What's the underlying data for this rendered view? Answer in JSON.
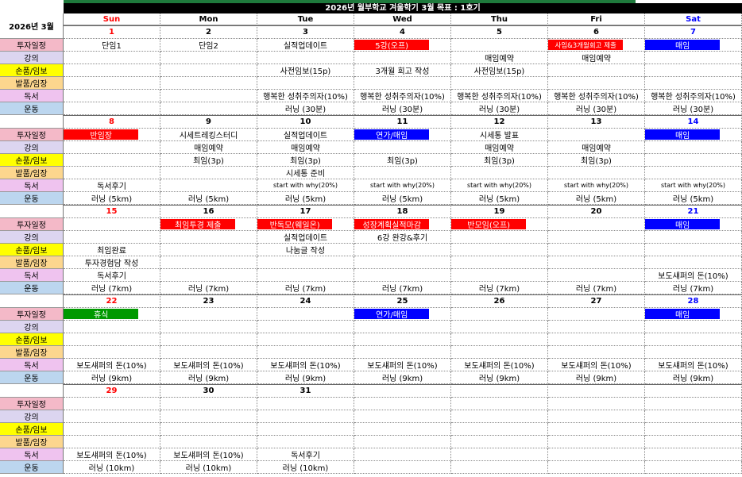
{
  "title": "2026년 월부학교 겨울학기 3월 목표 : 1호기",
  "month_label": "2026년 3월",
  "days": [
    "Sun",
    "Mon",
    "Tue",
    "Wed",
    "Thu",
    "Fri",
    "Sat"
  ],
  "day_colors": [
    "#ff0000",
    "#000000",
    "#000000",
    "#000000",
    "#000000",
    "#000000",
    "#0000ff"
  ],
  "row_labels": [
    "투자일정",
    "강의",
    "손품/임보",
    "발품/임장",
    "독서",
    "운동"
  ],
  "row_colors": [
    "#f4b9c8",
    "#dcd5f0",
    "#ffff00",
    "#fcd68e",
    "#efc3ef",
    "#bcd6ef"
  ],
  "weeks": [
    {
      "dates": [
        1,
        2,
        3,
        4,
        5,
        6,
        7
      ],
      "rows": [
        [
          "단임1",
          "단임2",
          "실적업데이트",
          {
            "text": "5강(오프)",
            "bg": "#ff0000"
          },
          null,
          {
            "text": "사임&3개월회고 제출",
            "bg": "#ff0000"
          },
          {
            "text": "매임",
            "bg": "#0000ff"
          }
        ],
        [
          null,
          null,
          null,
          null,
          "매임예약",
          "매임예약",
          null
        ],
        [
          null,
          null,
          "사전임보(15p)",
          "3개월 회고 작성",
          "사전임보(15p)",
          null,
          null
        ],
        [
          null,
          null,
          null,
          null,
          null,
          null,
          null
        ],
        [
          null,
          null,
          "행복한 성취주의자(10%)",
          "행복한 성취주의자(10%)",
          "행복한 성취주의자(10%)",
          "행복한 성취주의자(10%)",
          "행복한 성취주의자(10%)"
        ],
        [
          null,
          null,
          "러닝 (30분)",
          "러닝 (30분)",
          "러닝 (30분)",
          "러닝 (30분)",
          "러닝 (30분)"
        ]
      ]
    },
    {
      "dates": [
        8,
        9,
        10,
        11,
        12,
        13,
        14
      ],
      "rows": [
        [
          {
            "text": "반임장",
            "bg": "#ff0000"
          },
          "시세트레킹스터디",
          "실적업데이트",
          {
            "text": "연가/매임",
            "bg": "#0000ff"
          },
          "시세통 발표",
          null,
          {
            "text": "매임",
            "bg": "#0000ff"
          }
        ],
        [
          null,
          "매임예약",
          "매임예약",
          null,
          "매임예약",
          "매임예약",
          null
        ],
        [
          null,
          "최임(3p)",
          "최임(3p)",
          "최임(3p)",
          "최임(3p)",
          "최임(3p)",
          null
        ],
        [
          null,
          null,
          "시세통 준비",
          null,
          null,
          null,
          null
        ],
        [
          "독서후기",
          null,
          "start with why(20%)",
          "start with why(20%)",
          "start with why(20%)",
          "start with why(20%)",
          "start with why(20%)"
        ],
        [
          "러닝 (5km)",
          "러닝 (5km)",
          "러닝 (5km)",
          "러닝 (5km)",
          "러닝 (5km)",
          "러닝 (5km)",
          "러닝 (5km)"
        ]
      ]
    },
    {
      "dates": [
        15,
        16,
        17,
        18,
        19,
        20,
        21
      ],
      "rows": [
        [
          null,
          {
            "text": "최임투경 제출",
            "bg": "#ff0000"
          },
          {
            "text": "반독모(웨일온)",
            "bg": "#ff0000"
          },
          {
            "text": "성장계획실적마감",
            "bg": "#ff0000"
          },
          {
            "text": "반모임(오프)",
            "bg": "#ff0000"
          },
          null,
          {
            "text": "매임",
            "bg": "#0000ff"
          }
        ],
        [
          null,
          null,
          "실적업데이트",
          "6강 완강&후기",
          null,
          null,
          null
        ],
        [
          "최임완료",
          null,
          "나눔글 작성",
          null,
          null,
          null,
          null
        ],
        [
          "투자경험담 작성",
          null,
          null,
          null,
          null,
          null,
          null
        ],
        [
          "독서후기",
          null,
          null,
          null,
          null,
          null,
          "보도섀퍼의 돈(10%)"
        ],
        [
          "러닝 (7km)",
          "러닝 (7km)",
          "러닝 (7km)",
          "러닝 (7km)",
          "러닝 (7km)",
          "러닝 (7km)",
          "러닝 (7km)"
        ]
      ]
    },
    {
      "dates": [
        22,
        23,
        24,
        25,
        26,
        27,
        28
      ],
      "rows": [
        [
          {
            "text": "휴식",
            "bg": "#009900"
          },
          null,
          null,
          {
            "text": "연가/매임",
            "bg": "#0000ff"
          },
          null,
          null,
          {
            "text": "매임",
            "bg": "#0000ff"
          }
        ],
        [
          null,
          null,
          null,
          null,
          null,
          null,
          null
        ],
        [
          null,
          null,
          null,
          null,
          null,
          null,
          null
        ],
        [
          null,
          null,
          null,
          null,
          null,
          null,
          null
        ],
        [
          "보도섀퍼의 돈(10%)",
          "보도섀퍼의 돈(10%)",
          "보도섀퍼의 돈(10%)",
          "보도섀퍼의 돈(10%)",
          "보도섀퍼의 돈(10%)",
          "보도섀퍼의 돈(10%)",
          "보도섀퍼의 돈(10%)"
        ],
        [
          "러닝 (9km)",
          "러닝 (9km)",
          "러닝 (9km)",
          "러닝 (9km)",
          "러닝 (9km)",
          "러닝 (9km)",
          "러닝 (9km)"
        ]
      ]
    },
    {
      "dates": [
        29,
        30,
        31,
        null,
        null,
        null,
        null
      ],
      "rows": [
        [
          null,
          null,
          null,
          null,
          null,
          null,
          null
        ],
        [
          null,
          null,
          null,
          null,
          null,
          null,
          null
        ],
        [
          null,
          null,
          null,
          null,
          null,
          null,
          null
        ],
        [
          null,
          null,
          null,
          null,
          null,
          null,
          null
        ],
        [
          "보도섀퍼의 돈(10%)",
          "보도섀퍼의 돈(10%)",
          "독서후기",
          null,
          null,
          null,
          null
        ],
        [
          "러닝 (10km)",
          "러닝 (10km)",
          "러닝 (10km)",
          null,
          null,
          null,
          null
        ]
      ]
    }
  ]
}
